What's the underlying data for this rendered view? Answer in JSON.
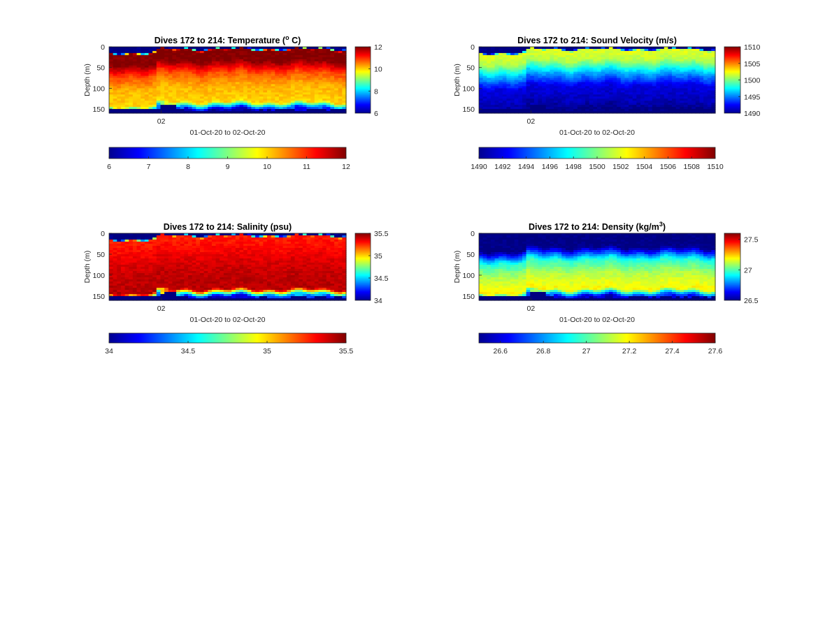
{
  "chart_data": [
    {
      "type": "heatmap",
      "title": "Dives 172 to 214: Temperature (",
      "title_sup": "o",
      "title_after": " C)",
      "ylabel": "Depth (m)",
      "xlabel": "01-Oct-20 to 02-Oct-20",
      "x_tick_labels": [
        "02"
      ],
      "y_ticks": [
        0,
        50,
        100,
        150
      ],
      "ylim": [
        0,
        160
      ],
      "y_reversed": true,
      "colormap": "jet",
      "clim": [
        6,
        12
      ],
      "side_colorbar_ticks": [
        6,
        8,
        10,
        12
      ],
      "bottom_colorbar_ticks": [
        6,
        7,
        8,
        9,
        10,
        11,
        12
      ],
      "profile_depth_layers_m": [
        0,
        5,
        30,
        60,
        90,
        130,
        150
      ],
      "profile_values": [
        6,
        12,
        12,
        10.8,
        10.2,
        10.0,
        6
      ]
    },
    {
      "type": "heatmap",
      "title": "Dives 172 to 214: Sound Velocity (m/s)",
      "ylabel": "Depth (m)",
      "xlabel": "01-Oct-20 to 02-Oct-20",
      "x_tick_labels": [
        "02"
      ],
      "y_ticks": [
        0,
        50,
        100,
        150
      ],
      "ylim": [
        0,
        160
      ],
      "y_reversed": true,
      "colormap": "jet",
      "clim": [
        1490,
        1510
      ],
      "side_colorbar_ticks": [
        1490,
        1495,
        1500,
        1505,
        1510
      ],
      "bottom_colorbar_ticks": [
        1490,
        1492,
        1494,
        1496,
        1498,
        1500,
        1502,
        1504,
        1506,
        1508,
        1510
      ],
      "profile_depth_layers_m": [
        0,
        5,
        30,
        60,
        90,
        130,
        150
      ],
      "profile_values": [
        1490,
        1502,
        1501,
        1496,
        1492,
        1491,
        1490
      ]
    },
    {
      "type": "heatmap",
      "title": "Dives 172 to 214: Salinity (psu)",
      "ylabel": "Depth (m)",
      "xlabel": "01-Oct-20 to 02-Oct-20",
      "x_tick_labels": [
        "02"
      ],
      "y_ticks": [
        0,
        50,
        100,
        150
      ],
      "ylim": [
        0,
        160
      ],
      "y_reversed": true,
      "colormap": "jet",
      "clim": [
        34,
        35.5
      ],
      "side_colorbar_ticks": [
        34,
        34.5,
        35,
        35.5
      ],
      "bottom_colorbar_ticks": [
        34,
        34.5,
        35,
        35.5
      ],
      "profile_depth_layers_m": [
        0,
        5,
        30,
        60,
        90,
        130,
        150
      ],
      "profile_values": [
        34,
        35.27,
        35.3,
        35.36,
        35.4,
        35.42,
        34
      ]
    },
    {
      "type": "heatmap",
      "title": "Dives 172 to 214: Density (kg/m",
      "title_sup": "3",
      "title_after": ")",
      "ylabel": "Depth (m)",
      "xlabel": "01-Oct-20 to 02-Oct-20",
      "x_tick_labels": [
        "02"
      ],
      "y_ticks": [
        0,
        50,
        100,
        150
      ],
      "ylim": [
        0,
        160
      ],
      "y_reversed": true,
      "colormap": "jet",
      "clim": [
        26.5,
        27.6
      ],
      "side_colorbar_ticks": [
        26.5,
        27,
        27.5
      ],
      "bottom_colorbar_ticks": [
        26.6,
        26.8,
        27,
        27.2,
        27.4,
        27.6
      ],
      "profile_depth_layers_m": [
        0,
        5,
        30,
        60,
        90,
        130,
        150
      ],
      "profile_values": [
        26.5,
        26.5,
        26.5,
        26.95,
        27.1,
        27.2,
        26.5
      ]
    }
  ]
}
